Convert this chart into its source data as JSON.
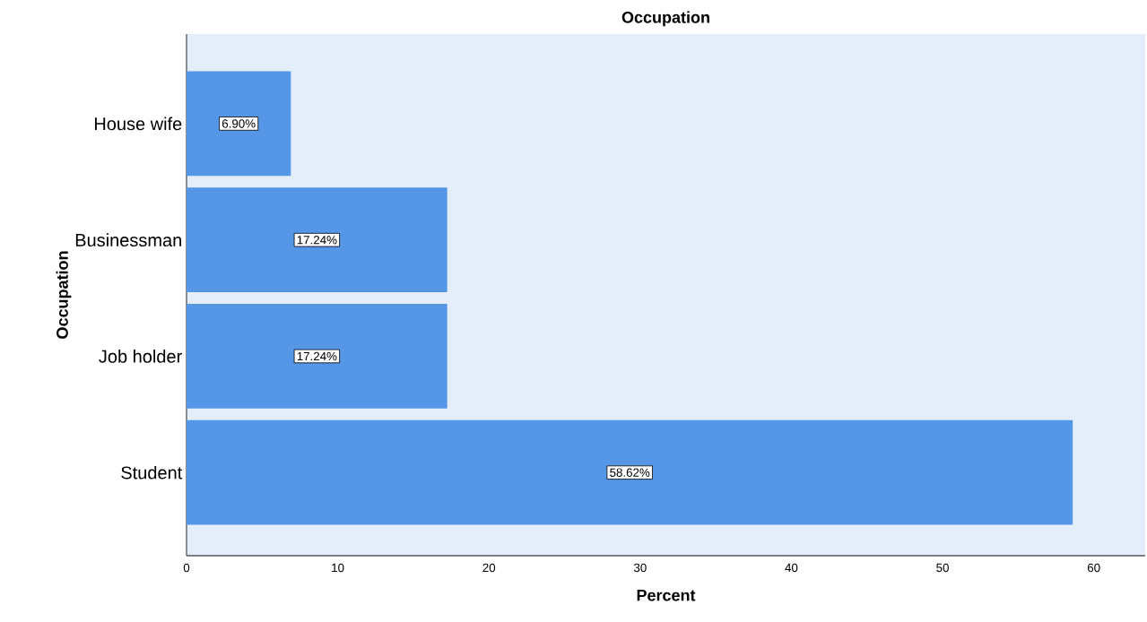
{
  "chart_data": {
    "type": "bar",
    "orientation": "horizontal",
    "title": "Occupation",
    "xlabel": "Percent",
    "ylabel": "Occupation",
    "categories": [
      "House wife",
      "Businessman",
      "Job holder",
      "Student"
    ],
    "values": [
      6.9,
      17.24,
      17.24,
      58.62
    ],
    "value_labels": [
      "6.90%",
      "17.24%",
      "17.24%",
      "58.62%"
    ],
    "color": "#5596e6",
    "xlim": [
      0,
      63.4
    ],
    "xticks": [
      0,
      10,
      20,
      30,
      40,
      50,
      60
    ]
  }
}
